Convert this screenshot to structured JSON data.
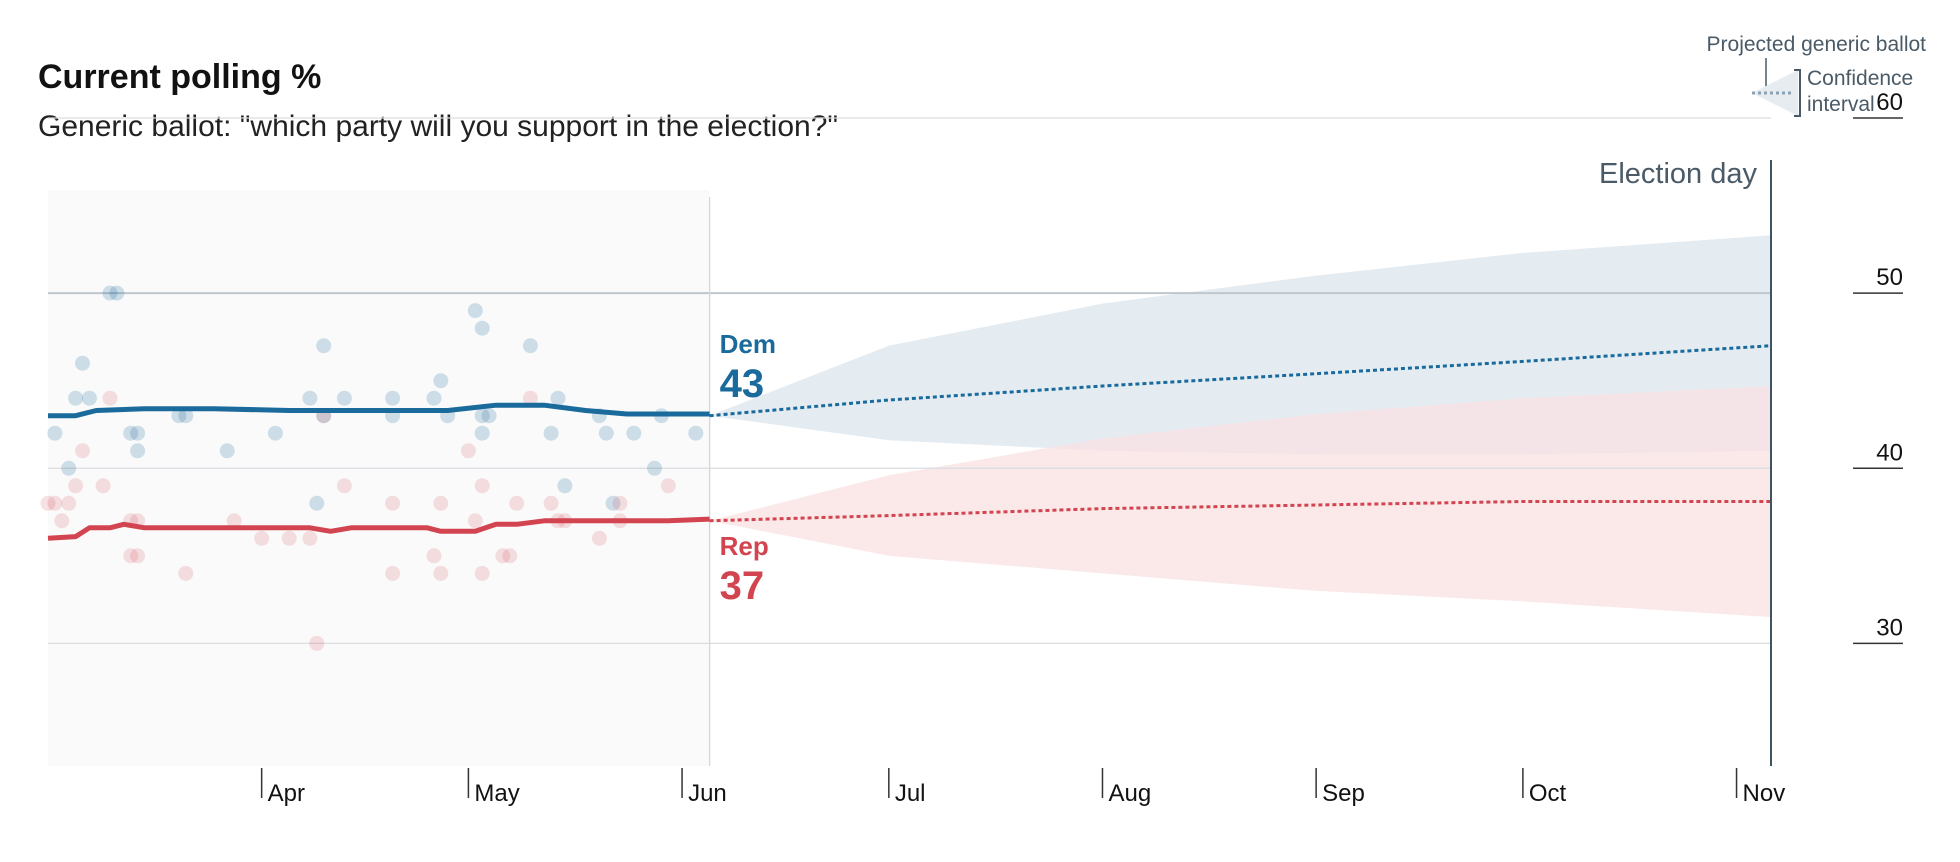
{
  "header": {
    "title": "Current polling %",
    "subtitle": "Generic ballot: \"which party will you support in the election?\""
  },
  "legend": {
    "projected_label": "Projected generic ballot",
    "ci_label_line1": "Confidence",
    "ci_label_line2": "interval"
  },
  "chart_data": {
    "type": "line",
    "title": "Current polling %",
    "subtitle": "Generic ballot: \"which party will you support in the election?\"",
    "ylim": [
      23,
      60
    ],
    "y_ticks": [
      30,
      40,
      50,
      60
    ],
    "x_range": [
      "2018-03-01",
      "2018-11-06"
    ],
    "x_ticks": [
      {
        "date": "2018-04-01",
        "label": "Apr"
      },
      {
        "date": "2018-05-01",
        "label": "May"
      },
      {
        "date": "2018-06-01",
        "label": "Jun"
      },
      {
        "date": "2018-07-01",
        "label": "Jul"
      },
      {
        "date": "2018-08-01",
        "label": "Aug"
      },
      {
        "date": "2018-09-01",
        "label": "Sep"
      },
      {
        "date": "2018-10-01",
        "label": "Oct"
      },
      {
        "date": "2018-11-01",
        "label": "Nov"
      }
    ],
    "today": "2018-06-05",
    "election_day": {
      "date": "2018-11-06",
      "label": "Election day"
    },
    "grid": true,
    "colors": {
      "dem": "#1a6a9c",
      "rep": "#d2444f",
      "dem_band": "#e4ecf2",
      "rep_band": "#f9e1e3",
      "past_bg": "#fafafa"
    },
    "series": [
      {
        "name": "Dem",
        "key": "dem",
        "current_value": "43",
        "trend": [
          [
            "2018-03-01",
            43.0
          ],
          [
            "2018-03-05",
            43.0
          ],
          [
            "2018-03-08",
            43.3
          ],
          [
            "2018-03-15",
            43.4
          ],
          [
            "2018-03-25",
            43.4
          ],
          [
            "2018-04-05",
            43.3
          ],
          [
            "2018-04-20",
            43.3
          ],
          [
            "2018-04-28",
            43.3
          ],
          [
            "2018-05-05",
            43.6
          ],
          [
            "2018-05-12",
            43.6
          ],
          [
            "2018-05-18",
            43.3
          ],
          [
            "2018-05-24",
            43.1
          ],
          [
            "2018-06-05",
            43.1
          ]
        ],
        "projection": [
          [
            "2018-06-05",
            43.0
          ],
          [
            "2018-07-01",
            43.9
          ],
          [
            "2018-08-01",
            44.7
          ],
          [
            "2018-09-01",
            45.4
          ],
          [
            "2018-10-01",
            46.1
          ],
          [
            "2018-11-06",
            47.0
          ]
        ],
        "ci_upper": [
          [
            "2018-06-05",
            43.0
          ],
          [
            "2018-07-01",
            47.0
          ],
          [
            "2018-08-01",
            49.4
          ],
          [
            "2018-09-01",
            51.0
          ],
          [
            "2018-10-01",
            52.3
          ],
          [
            "2018-11-06",
            53.3
          ]
        ],
        "ci_lower": [
          [
            "2018-06-05",
            43.0
          ],
          [
            "2018-07-01",
            41.6
          ],
          [
            "2018-08-01",
            41.0
          ],
          [
            "2018-09-01",
            40.8
          ],
          [
            "2018-10-01",
            40.8
          ],
          [
            "2018-11-06",
            41.0
          ]
        ],
        "polls": [
          [
            "2018-03-02",
            42
          ],
          [
            "2018-03-04",
            40
          ],
          [
            "2018-03-05",
            44
          ],
          [
            "2018-03-06",
            46
          ],
          [
            "2018-03-07",
            44
          ],
          [
            "2018-03-10",
            50
          ],
          [
            "2018-03-11",
            50
          ],
          [
            "2018-03-13",
            42
          ],
          [
            "2018-03-14",
            41
          ],
          [
            "2018-03-14",
            42
          ],
          [
            "2018-03-20",
            43
          ],
          [
            "2018-03-21",
            43
          ],
          [
            "2018-03-27",
            41
          ],
          [
            "2018-04-03",
            42
          ],
          [
            "2018-04-08",
            44
          ],
          [
            "2018-04-09",
            38
          ],
          [
            "2018-04-10",
            47
          ],
          [
            "2018-04-10",
            43
          ],
          [
            "2018-04-13",
            44
          ],
          [
            "2018-04-20",
            44
          ],
          [
            "2018-04-20",
            43
          ],
          [
            "2018-04-26",
            44
          ],
          [
            "2018-04-27",
            45
          ],
          [
            "2018-04-28",
            43
          ],
          [
            "2018-05-02",
            49
          ],
          [
            "2018-05-03",
            48
          ],
          [
            "2018-05-03",
            43
          ],
          [
            "2018-05-04",
            43
          ],
          [
            "2018-05-10",
            47
          ],
          [
            "2018-05-03",
            42
          ],
          [
            "2018-05-13",
            42
          ],
          [
            "2018-05-14",
            44
          ],
          [
            "2018-05-15",
            39
          ],
          [
            "2018-05-20",
            43
          ],
          [
            "2018-05-21",
            42
          ],
          [
            "2018-05-22",
            38
          ],
          [
            "2018-05-25",
            42
          ],
          [
            "2018-05-28",
            40
          ],
          [
            "2018-05-29",
            43
          ],
          [
            "2018-06-03",
            42
          ]
        ]
      },
      {
        "name": "Rep",
        "key": "rep",
        "current_value": "37",
        "trend": [
          [
            "2018-03-01",
            36.0
          ],
          [
            "2018-03-05",
            36.1
          ],
          [
            "2018-03-07",
            36.6
          ],
          [
            "2018-03-10",
            36.6
          ],
          [
            "2018-03-12",
            36.8
          ],
          [
            "2018-03-15",
            36.6
          ],
          [
            "2018-04-01",
            36.6
          ],
          [
            "2018-04-08",
            36.6
          ],
          [
            "2018-04-11",
            36.4
          ],
          [
            "2018-04-14",
            36.6
          ],
          [
            "2018-04-18",
            36.6
          ],
          [
            "2018-04-25",
            36.6
          ],
          [
            "2018-04-27",
            36.4
          ],
          [
            "2018-05-02",
            36.4
          ],
          [
            "2018-05-05",
            36.8
          ],
          [
            "2018-05-08",
            36.8
          ],
          [
            "2018-05-12",
            37.0
          ],
          [
            "2018-05-20",
            37.0
          ],
          [
            "2018-05-30",
            37.0
          ],
          [
            "2018-06-05",
            37.1
          ]
        ],
        "projection": [
          [
            "2018-06-05",
            37.0
          ],
          [
            "2018-07-01",
            37.3
          ],
          [
            "2018-08-01",
            37.7
          ],
          [
            "2018-09-01",
            37.9
          ],
          [
            "2018-10-01",
            38.1
          ],
          [
            "2018-11-06",
            38.1
          ]
        ],
        "ci_upper": [
          [
            "2018-06-05",
            37.0
          ],
          [
            "2018-07-01",
            39.6
          ],
          [
            "2018-08-01",
            41.7
          ],
          [
            "2018-09-01",
            43.1
          ],
          [
            "2018-10-01",
            44.0
          ],
          [
            "2018-11-06",
            44.7
          ]
        ],
        "ci_lower": [
          [
            "2018-06-05",
            37.0
          ],
          [
            "2018-07-01",
            35.0
          ],
          [
            "2018-08-01",
            34.0
          ],
          [
            "2018-09-01",
            33.0
          ],
          [
            "2018-10-01",
            32.4
          ],
          [
            "2018-11-06",
            31.5
          ]
        ],
        "polls": [
          [
            "2018-03-01",
            38
          ],
          [
            "2018-03-02",
            38
          ],
          [
            "2018-03-03",
            37
          ],
          [
            "2018-03-04",
            38
          ],
          [
            "2018-03-05",
            39
          ],
          [
            "2018-03-06",
            41
          ],
          [
            "2018-03-09",
            39
          ],
          [
            "2018-03-10",
            44
          ],
          [
            "2018-03-13",
            35
          ],
          [
            "2018-03-13",
            37
          ],
          [
            "2018-03-14",
            35
          ],
          [
            "2018-03-14",
            37
          ],
          [
            "2018-03-21",
            34
          ],
          [
            "2018-03-28",
            37
          ],
          [
            "2018-04-01",
            36
          ],
          [
            "2018-04-05",
            36
          ],
          [
            "2018-04-08",
            36
          ],
          [
            "2018-04-09",
            30
          ],
          [
            "2018-04-10",
            43
          ],
          [
            "2018-04-13",
            39
          ],
          [
            "2018-04-20",
            38
          ],
          [
            "2018-04-20",
            34
          ],
          [
            "2018-04-26",
            35
          ],
          [
            "2018-04-27",
            38
          ],
          [
            "2018-04-27",
            34
          ],
          [
            "2018-05-01",
            41
          ],
          [
            "2018-05-02",
            37
          ],
          [
            "2018-05-03",
            39
          ],
          [
            "2018-05-03",
            34
          ],
          [
            "2018-05-06",
            35
          ],
          [
            "2018-05-07",
            35
          ],
          [
            "2018-05-08",
            38
          ],
          [
            "2018-05-10",
            44
          ],
          [
            "2018-05-13",
            38
          ],
          [
            "2018-05-14",
            37
          ],
          [
            "2018-05-15",
            37
          ],
          [
            "2018-05-20",
            36
          ],
          [
            "2018-05-23",
            38
          ],
          [
            "2018-05-23",
            37
          ],
          [
            "2018-05-30",
            39
          ]
        ]
      }
    ]
  }
}
